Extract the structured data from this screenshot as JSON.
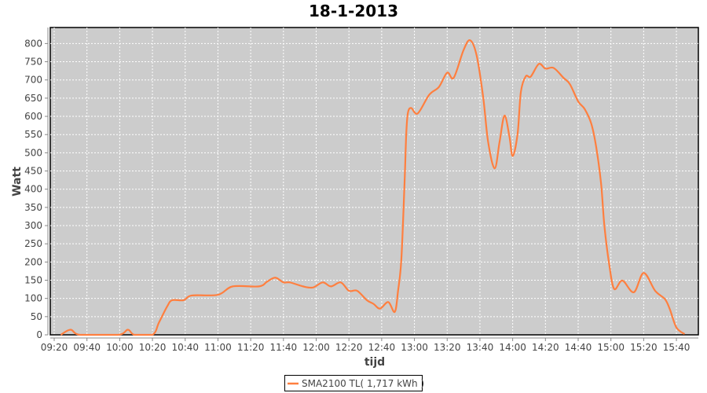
{
  "chart_data": {
    "type": "line",
    "title": "18-1-2013",
    "xlabel": "tijd",
    "ylabel": "Watt",
    "xlim": [
      "09:17",
      "15:53"
    ],
    "ylim": [
      0,
      844
    ],
    "x_ticks": [
      "09:20",
      "09:40",
      "10:00",
      "10:20",
      "10:40",
      "11:00",
      "11:20",
      "11:40",
      "12:00",
      "12:20",
      "12:40",
      "13:00",
      "13:20",
      "13:40",
      "14:00",
      "14:20",
      "14:40",
      "15:00",
      "15:20",
      "15:40"
    ],
    "y_ticks": [
      0,
      50,
      100,
      150,
      200,
      250,
      300,
      350,
      400,
      450,
      500,
      550,
      600,
      650,
      700,
      750,
      800
    ],
    "grid": true,
    "legend_position": "bottom",
    "plot_background": "#cccccc",
    "series": [
      {
        "name": "SMA2100 TL( 1,717 kWh )",
        "color": "#ff7f3f",
        "x": [
          "09:24",
          "09:30",
          "09:36",
          "09:59",
          "10:05",
          "10:09",
          "10:20",
          "10:24",
          "10:29",
          "10:32",
          "10:39",
          "10:44",
          "11:00",
          "11:09",
          "11:25",
          "11:30",
          "11:35",
          "11:40",
          "11:44",
          "11:52",
          "11:58",
          "12:04",
          "12:09",
          "12:15",
          "12:20",
          "12:25",
          "12:31",
          "12:35",
          "12:39",
          "12:44",
          "12:48",
          "12:50",
          "12:52",
          "12:54",
          "12:55",
          "12:56",
          "12:58",
          "13:02",
          "13:09",
          "13:15",
          "13:20",
          "13:24",
          "13:30",
          "13:34",
          "13:38",
          "13:42",
          "13:45",
          "13:49",
          "13:52",
          "13:55",
          "13:58",
          "14:00",
          "14:03",
          "14:05",
          "14:08",
          "14:11",
          "14:16",
          "14:20",
          "14:25",
          "14:31",
          "14:35",
          "14:40",
          "14:44",
          "14:48",
          "14:51",
          "14:54",
          "14:56",
          "14:59",
          "15:02",
          "15:07",
          "15:14",
          "15:20",
          "15:27",
          "15:33",
          "15:36",
          "15:40",
          "15:45"
        ],
        "values": [
          0,
          14,
          0,
          0,
          14,
          0,
          0,
          34,
          78,
          95,
          95,
          108,
          110,
          133,
          133,
          146,
          157,
          144,
          144,
          133,
          130,
          144,
          133,
          144,
          121,
          121,
          95,
          85,
          72,
          90,
          63,
          121,
          207,
          422,
          552,
          609,
          623,
          608,
          659,
          681,
          720,
          706,
          782,
          809,
          767,
          652,
          530,
          457,
          530,
          602,
          545,
          491,
          552,
          667,
          710,
          709,
          744,
          731,
          733,
          706,
          688,
          641,
          620,
          580,
          516,
          415,
          300,
          192,
          126,
          149,
          117,
          170,
          121,
          98,
          70,
          20,
          2
        ]
      }
    ]
  }
}
